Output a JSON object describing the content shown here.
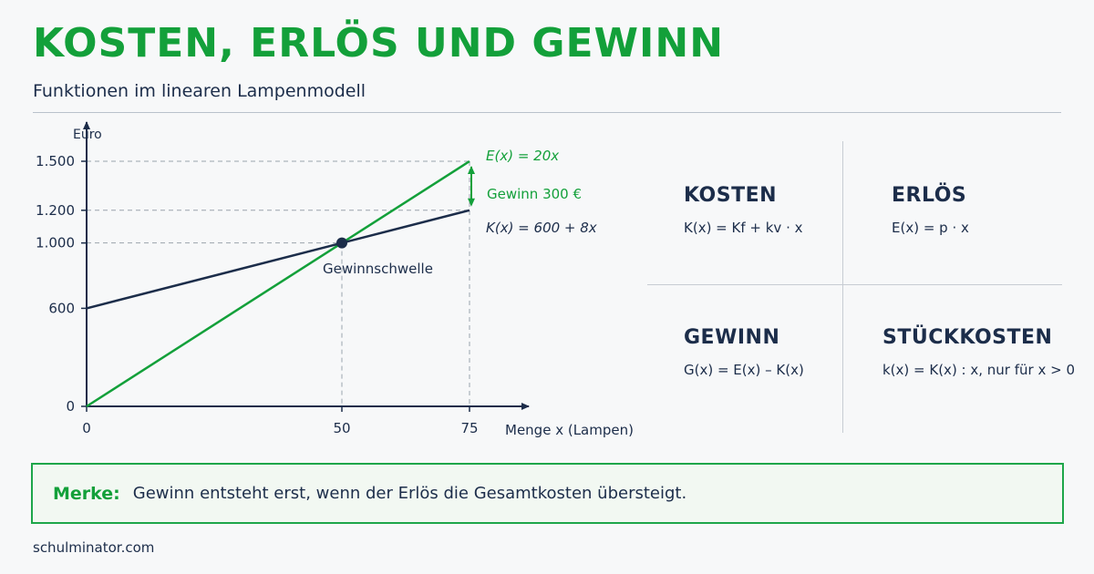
{
  "header": {
    "title": "KOSTEN, ERLÖS UND GEWINN",
    "subtitle": "Funktionen im linearen Lampenmodell"
  },
  "colors": {
    "green": "#13a03a",
    "navy": "#1c2d4a",
    "grid": "#9aa3ad"
  },
  "chart_data": {
    "type": "line",
    "xlabel": "Menge x (Lampen)",
    "ylabel": "Euro",
    "xlim": [
      0,
      75
    ],
    "ylim": [
      0,
      1500
    ],
    "x_ticks": [
      0,
      50,
      75
    ],
    "x_tick_labels": [
      "0",
      "50",
      "75"
    ],
    "y_ticks": [
      0,
      600,
      1000,
      1200,
      1500
    ],
    "y_tick_labels": [
      "0",
      "600",
      "1.000",
      "1.200",
      "1.500"
    ],
    "series": [
      {
        "name": "E(x) = 20x",
        "color": "#13a03a",
        "x": [
          0,
          50,
          75
        ],
        "y": [
          0,
          1000,
          1500
        ]
      },
      {
        "name": "K(x) = 600 + 8x",
        "color": "#1c2d4a",
        "x": [
          0,
          50,
          75
        ],
        "y": [
          600,
          1000,
          1200
        ]
      }
    ],
    "break_even": {
      "x": 50,
      "y": 1000,
      "label": "Gewinnschwelle"
    },
    "profit_annotation": {
      "x": 75,
      "y_from": 1200,
      "y_to": 1500,
      "label": "Gewinn 300 €"
    },
    "grid": false
  },
  "definitions": [
    {
      "title": "KOSTEN",
      "formula": "K(x) = Kf + kv · x"
    },
    {
      "title": "ERLÖS",
      "formula": "E(x) = p · x"
    },
    {
      "title": "GEWINN",
      "formula": "G(x) = E(x) – K(x)"
    },
    {
      "title": "STÜCKKOSTEN",
      "formula": "k(x) = K(x) : x, nur für x > 0"
    }
  ],
  "merke": {
    "label": "Merke:",
    "text": "Gewinn entsteht erst, wenn der Erlös die Gesamtkosten übersteigt."
  },
  "footer": "schulminator.com"
}
